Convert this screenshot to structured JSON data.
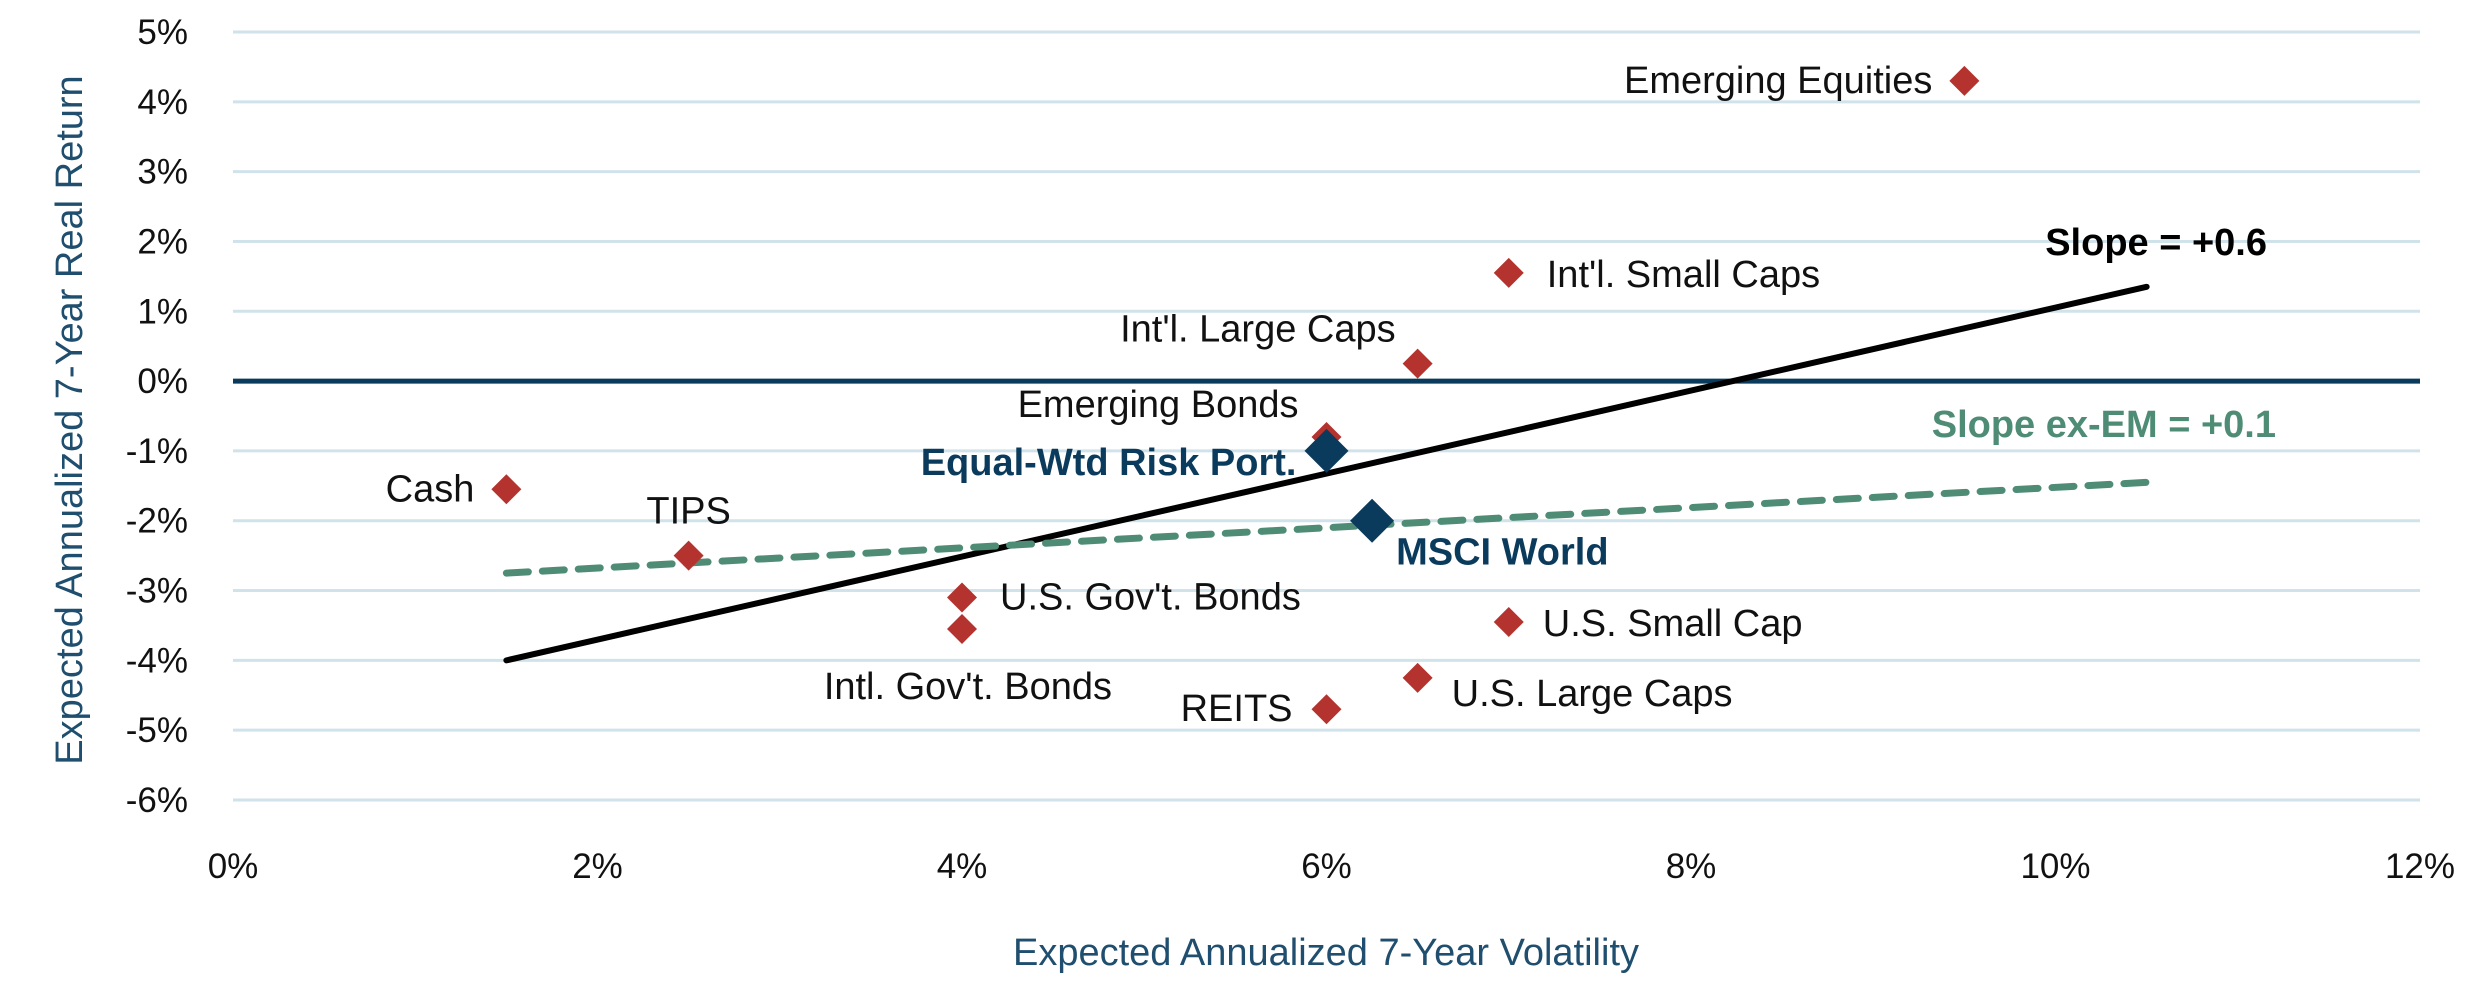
{
  "chart_data": {
    "type": "scatter",
    "title": "",
    "xlabel": "Expected Annualized 7-Year Volatility",
    "ylabel": "Expected Annualized 7-Year Real Return",
    "xlim": [
      0,
      12
    ],
    "ylim": [
      -6,
      5
    ],
    "x_ticks": [
      0,
      2,
      4,
      6,
      8,
      10,
      12
    ],
    "x_tick_labels": [
      "0%",
      "2%",
      "4%",
      "6%",
      "8%",
      "10%",
      "12%"
    ],
    "y_ticks": [
      5,
      4,
      3,
      2,
      1,
      0,
      -1,
      -2,
      -3,
      -4,
      -5,
      -6
    ],
    "y_tick_labels": [
      "5%",
      "4%",
      "3%",
      "2%",
      "1%",
      "0%",
      "-1%",
      "-2%",
      "-3%",
      "-4%",
      "-5%",
      "-6%"
    ],
    "grid": true,
    "points": [
      {
        "label": "Emerging Equities",
        "x": 9.5,
        "y": 4.3,
        "highlight": false
      },
      {
        "label": "Int'l. Small Caps",
        "x": 7.0,
        "y": 1.55,
        "highlight": false
      },
      {
        "label": "Int'l. Large Caps",
        "x": 6.5,
        "y": 0.25,
        "highlight": false
      },
      {
        "label": "Emerging Bonds",
        "x": 6.0,
        "y": -0.8,
        "highlight": false
      },
      {
        "label": "Equal-Wtd Risk Port.",
        "x": 6.0,
        "y": -1.0,
        "highlight": true
      },
      {
        "label": "MSCI World",
        "x": 6.25,
        "y": -2.0,
        "highlight": true
      },
      {
        "label": "Cash",
        "x": 1.5,
        "y": -1.55,
        "highlight": false
      },
      {
        "label": "TIPS",
        "x": 2.5,
        "y": -2.5,
        "highlight": false
      },
      {
        "label": "U.S. Gov't. Bonds",
        "x": 4.0,
        "y": -3.1,
        "highlight": false
      },
      {
        "label": "Intl. Gov't. Bonds",
        "x": 4.0,
        "y": -3.55,
        "highlight": false
      },
      {
        "label": "U.S. Small Cap",
        "x": 7.0,
        "y": -3.45,
        "highlight": false
      },
      {
        "label": "U.S. Large Caps",
        "x": 6.5,
        "y": -4.25,
        "highlight": false
      },
      {
        "label": "REITS",
        "x": 6.0,
        "y": -4.7,
        "highlight": false
      }
    ],
    "trendlines": [
      {
        "name": "Slope = +0.6",
        "x": [
          1.5,
          10.5
        ],
        "y": [
          -4.0,
          1.35
        ],
        "style": "solid",
        "color": "#000000"
      },
      {
        "name": "Slope ex-EM = +0.1",
        "x": [
          1.5,
          10.5
        ],
        "y": [
          -2.75,
          -1.45
        ],
        "style": "dashed",
        "color": "#4E8C76"
      }
    ],
    "zero_line_color": "#0B3B5C",
    "colors": {
      "point": "#B5332E",
      "highlight": "#0B3B5C",
      "grid": "#D0E2EA",
      "axis_title": "#1F4E6E"
    }
  }
}
